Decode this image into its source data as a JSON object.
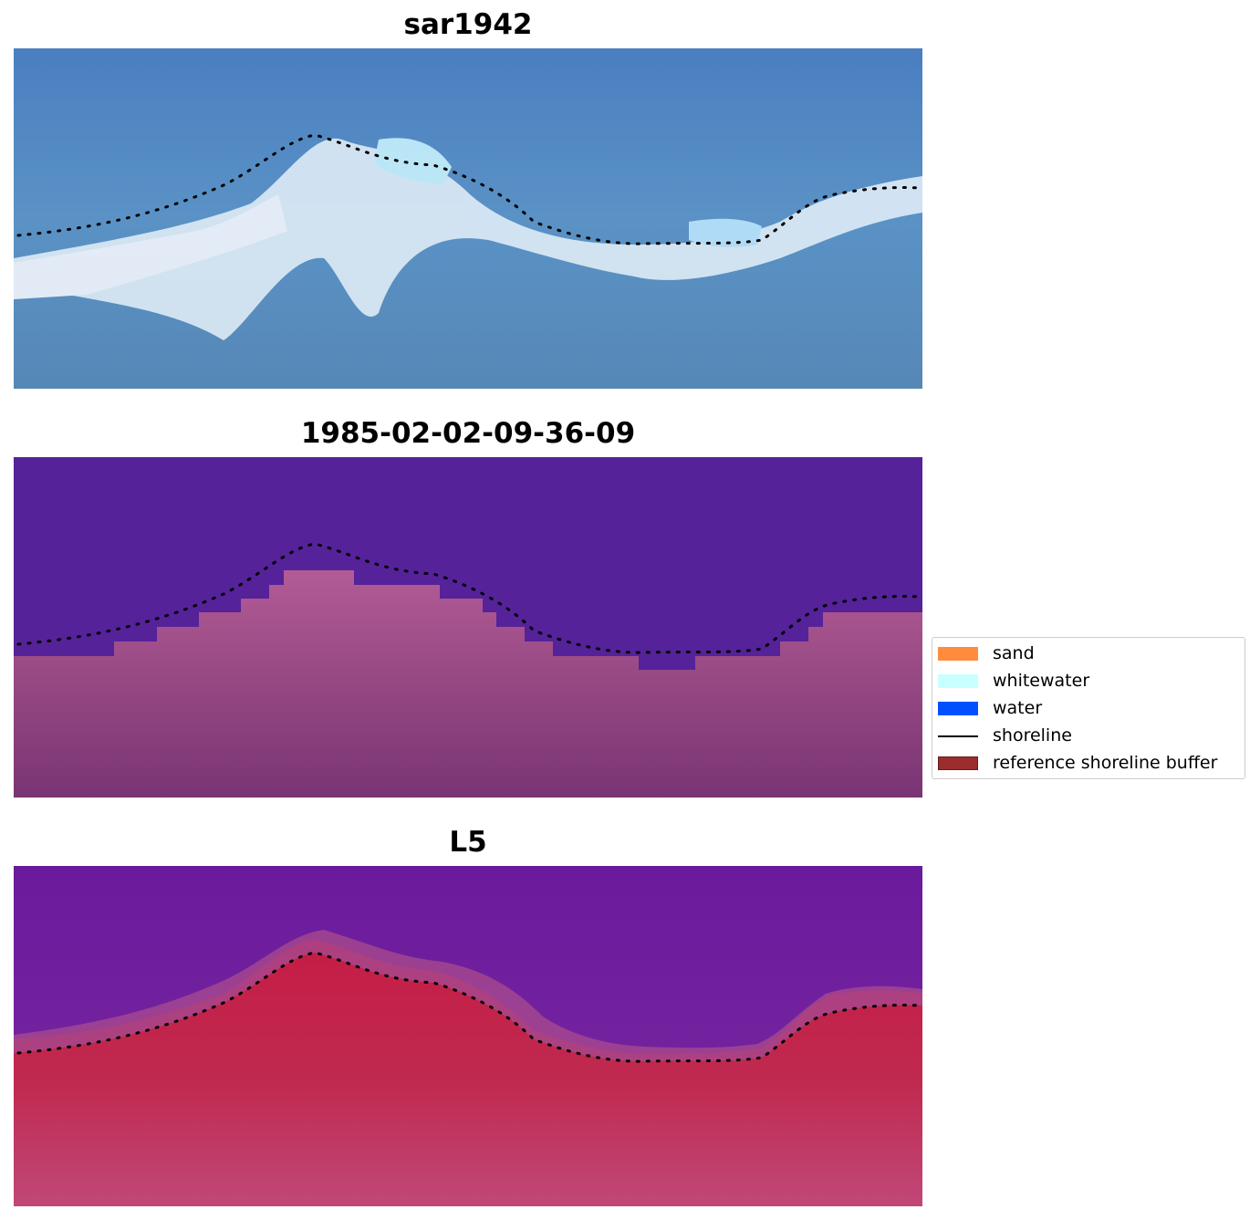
{
  "panels": [
    {
      "title": "sar1942"
    },
    {
      "title": "1985-02-02-09-36-09"
    },
    {
      "title": "L5"
    }
  ],
  "legend": {
    "items": [
      {
        "label": "sand",
        "color": "#ff8c3c",
        "kind": "patch"
      },
      {
        "label": "whitewater",
        "color": "#c8ffff",
        "kind": "patch"
      },
      {
        "label": "water",
        "color": "#0050ff",
        "kind": "patch"
      },
      {
        "label": "shoreline",
        "color": "#000000",
        "kind": "line"
      },
      {
        "label": "reference shoreline buffer",
        "color": "#9b2d2d",
        "kind": "patch"
      }
    ]
  },
  "colors": {
    "sar_water": "#4f86bf",
    "sar_foam": "#e8f2fa",
    "class_water": "#55229a",
    "class_land": "#a8588f",
    "l5_water": "#6a1a9c",
    "l5_land": "#c0203f"
  }
}
